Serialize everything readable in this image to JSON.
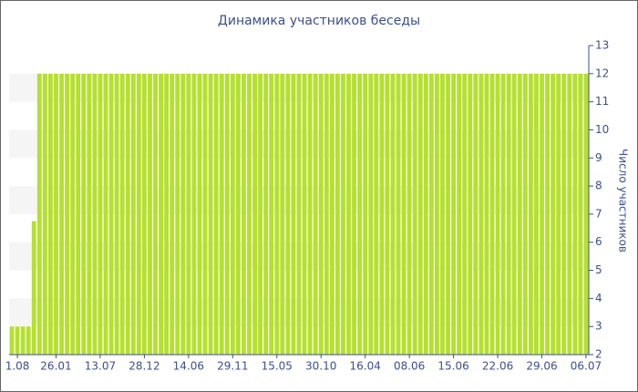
{
  "chart_data": {
    "type": "bar",
    "title": "Динамика участников беседы",
    "y_label": "Число участников",
    "color": "#b5e02e",
    "band_color": "#f5f5f5",
    "categories": [
      null,
      "1.08",
      null,
      null,
      null,
      null,
      null,
      null,
      "26.01",
      null,
      null,
      null,
      null,
      null,
      null,
      null,
      "13.07",
      null,
      null,
      null,
      null,
      null,
      null,
      null,
      "28.12",
      null,
      null,
      null,
      null,
      null,
      null,
      null,
      "14.06",
      null,
      null,
      null,
      null,
      null,
      null,
      null,
      "29.11",
      null,
      null,
      null,
      null,
      null,
      null,
      null,
      "15.05",
      null,
      null,
      null,
      null,
      null,
      null,
      null,
      "30.10",
      null,
      null,
      null,
      null,
      null,
      null,
      null,
      "16.04",
      null,
      null,
      null,
      null,
      null,
      null,
      null,
      "08.06",
      null,
      null,
      null,
      null,
      null,
      null,
      null,
      "15.06",
      null,
      null,
      null,
      null,
      null,
      null,
      null,
      "22.06",
      null,
      null,
      null,
      null,
      null,
      null,
      null,
      "29.06",
      null,
      null,
      null,
      null,
      null,
      null,
      null,
      "06.07"
    ],
    "values": [
      3,
      3,
      3,
      3,
      6.75,
      12,
      12,
      12,
      12,
      12,
      12,
      12,
      12,
      12,
      12,
      12,
      12,
      12,
      12,
      12,
      12,
      12,
      12,
      12,
      12,
      12,
      12,
      12,
      12,
      12,
      12,
      12,
      12,
      12,
      12,
      12,
      12,
      12,
      12,
      12,
      12,
      12,
      12,
      12,
      12,
      12,
      12,
      12,
      12,
      12,
      12,
      12,
      12,
      12,
      12,
      12,
      12,
      12,
      12,
      12,
      12,
      12,
      12,
      12,
      12,
      12,
      12,
      12,
      12,
      12,
      12,
      12,
      12,
      12,
      12,
      12,
      12,
      12,
      12,
      12,
      12,
      12,
      12,
      12,
      12,
      12,
      12,
      12,
      12,
      12,
      12,
      12,
      12,
      12,
      12,
      12,
      12,
      12,
      12,
      12,
      12,
      12,
      12,
      12,
      12
    ],
    "ylim": [
      2,
      13
    ],
    "yticks": [
      2,
      3,
      4,
      5,
      6,
      7,
      8,
      9,
      10,
      11,
      12,
      13
    ],
    "y_axis_side": "right"
  }
}
